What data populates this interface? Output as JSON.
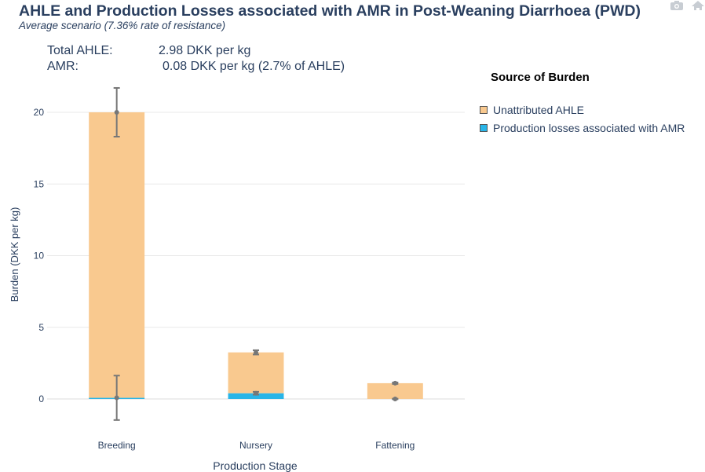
{
  "title": "AHLE and Production Losses associated with AMR in Post-Weaning Diarrhoea (PWD)",
  "subtitle": "Average scenario (7.36% rate of resistance)",
  "summary": {
    "total_label": "Total AHLE:",
    "total_value": "2.98 DKK per kg",
    "amr_label": "AMR:",
    "amr_value": "0.08 DKK per kg  (2.7% of AHLE)"
  },
  "modebar": {
    "icons": [
      "camera-icon",
      "home-icon"
    ]
  },
  "colors": {
    "unattributed": "#f9c98f",
    "amr": "#29b5e8",
    "grid": "#e9e9e9",
    "error": "#777777",
    "text": "#2a3f5f"
  },
  "chart_data": {
    "type": "bar",
    "barmode": "stack",
    "categories": [
      "Breeding",
      "Nursery",
      "Fattening"
    ],
    "series": [
      {
        "name": "Production losses associated with AMR",
        "color": "#29b5e8",
        "values": [
          0.08,
          0.4,
          0.0
        ],
        "error_low": [
          1.55,
          0.1,
          0.02
        ],
        "error_high": [
          1.55,
          0.1,
          0.02
        ]
      },
      {
        "name": "Unattributed AHLE",
        "color": "#f9c98f",
        "values": [
          19.92,
          2.85,
          1.1
        ],
        "error_low": [
          1.7,
          0.15,
          0.05
        ],
        "error_high": [
          1.7,
          0.15,
          0.05
        ]
      }
    ],
    "xlabel": "Production Stage",
    "ylabel": "Burden (DKK per kg)",
    "ylim": [
      -2.5,
      23
    ],
    "yticks": [
      0,
      5,
      10,
      15,
      20
    ],
    "legend": {
      "title": "Source of Burden",
      "placement": "right",
      "entries": [
        "Unattributed AHLE",
        "Production losses associated with AMR"
      ]
    },
    "grid": true
  }
}
